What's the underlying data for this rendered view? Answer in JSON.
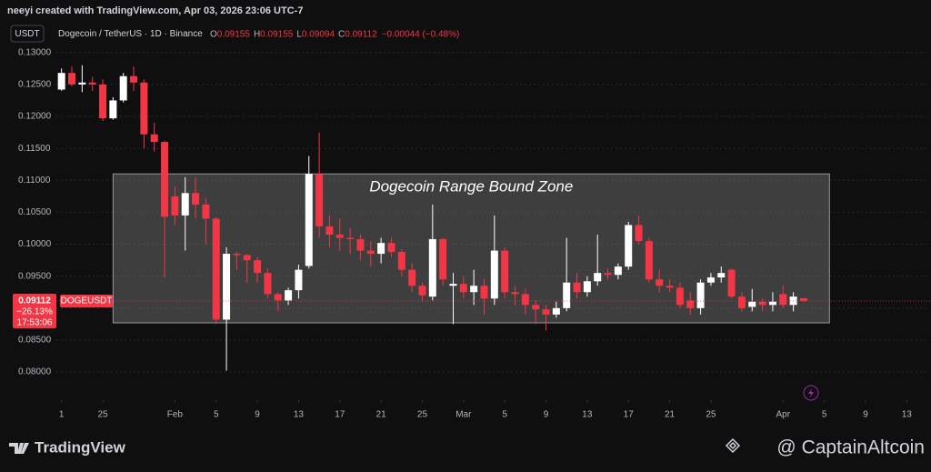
{
  "header": {
    "attribution": "neeyi created with TradingView.com, Apr 03, 2026 23:06 UTC-7",
    "currency_button": "USDT",
    "symbol": "Dogecoin / TetherUS · 1D · Binance",
    "ohlc": [
      {
        "key": "O",
        "value": "0.09155"
      },
      {
        "key": "H",
        "value": "0.09155"
      },
      {
        "key": "L",
        "value": "0.09094"
      },
      {
        "key": "C",
        "value": "0.09112"
      }
    ],
    "change": "−0.00044 (−0.48%)"
  },
  "chart_data": {
    "type": "candlestick",
    "grid": true,
    "xlim": [
      20.5,
      105
    ],
    "ylim": [
      0.0756,
      0.1311
    ],
    "xticks": [
      {
        "value": 21,
        "label": "1"
      },
      25,
      {
        "value": 32,
        "label": "Feb"
      },
      {
        "value": 36,
        "label": "5"
      },
      {
        "value": 40,
        "label": "9"
      },
      {
        "value": 44,
        "label": "13"
      },
      {
        "value": 48,
        "label": "17"
      },
      {
        "value": 52,
        "label": "21"
      },
      {
        "value": 56,
        "label": "25"
      },
      {
        "value": 60,
        "label": "Mar"
      },
      {
        "value": 64,
        "label": "5"
      },
      {
        "value": 68,
        "label": "9"
      },
      {
        "value": 72,
        "label": "13"
      },
      {
        "value": 76,
        "label": "17"
      },
      {
        "value": 80,
        "label": "21"
      },
      {
        "value": 84,
        "label": "25"
      },
      {
        "value": 91,
        "label": "Apr"
      },
      {
        "value": 95,
        "label": "5"
      },
      {
        "value": 99,
        "label": "9"
      },
      {
        "value": 103,
        "label": "13"
      }
    ],
    "yticks": [
      {
        "value": 0.13,
        "label": "0.13000"
      },
      {
        "value": 0.125,
        "label": "0.12500"
      },
      {
        "value": 0.12,
        "label": "0.12000"
      },
      {
        "value": 0.115,
        "label": "0.11500"
      },
      {
        "value": 0.11,
        "label": "0.11000"
      },
      {
        "value": 0.105,
        "label": "0.10500"
      },
      {
        "value": 0.1,
        "label": "0.10000"
      },
      {
        "value": 0.095,
        "label": "0.09500"
      },
      {
        "value": 0.09,
        "label": "0.09000"
      },
      {
        "value": 0.085,
        "label": "0.08500"
      },
      {
        "value": 0.08,
        "label": "0.08000"
      }
    ],
    "series": [
      {
        "name": "DOGEUSDT",
        "up_color": "#ffffff",
        "down_color": "#f23645",
        "x": [
          21,
          22,
          23,
          24,
          25,
          26,
          27,
          28,
          29,
          30,
          31,
          32,
          33,
          34,
          35,
          36,
          37,
          38,
          39,
          40,
          41,
          42,
          43,
          44,
          45,
          46,
          47,
          48,
          49,
          50,
          51,
          52,
          53,
          54,
          55,
          56,
          57,
          58,
          59,
          60,
          61,
          62,
          63,
          64,
          65,
          66,
          67,
          68,
          69,
          70,
          71,
          72,
          73,
          74,
          75,
          76,
          77,
          78,
          79,
          80,
          81,
          82,
          83,
          84,
          85,
          86,
          87,
          88,
          89,
          90,
          91,
          92,
          93
        ],
        "open": [
          0.1242,
          0.1268,
          0.125,
          0.1253,
          0.125,
          0.1197,
          0.1225,
          0.1263,
          0.1253,
          0.1172,
          0.116,
          0.1075,
          0.1045,
          0.108,
          0.1062,
          0.104,
          0.0882,
          0.0985,
          0.0983,
          0.0975,
          0.0955,
          0.0922,
          0.0912,
          0.0928,
          0.0966,
          0.111,
          0.1028,
          0.1015,
          0.101,
          0.1008,
          0.099,
          0.0985,
          0.1002,
          0.0988,
          0.096,
          0.0935,
          0.0918,
          0.1008,
          0.0935,
          0.0938,
          0.0925,
          0.0935,
          0.0915,
          0.099,
          0.0925,
          0.0922,
          0.0905,
          0.0898,
          0.089,
          0.09,
          0.094,
          0.0925,
          0.0942,
          0.0955,
          0.0952,
          0.0965,
          0.103,
          0.1005,
          0.0945,
          0.0935,
          0.0932,
          0.0912,
          0.09,
          0.094,
          0.0948,
          0.096,
          0.0918,
          0.0902,
          0.091,
          0.0905,
          0.0922,
          0.0905,
          0.09155
        ],
        "high": [
          0.1275,
          0.1278,
          0.128,
          0.1262,
          0.1258,
          0.123,
          0.1268,
          0.1278,
          0.1258,
          0.119,
          0.1162,
          0.109,
          0.1105,
          0.1105,
          0.1072,
          0.1042,
          0.0995,
          0.0988,
          0.0985,
          0.098,
          0.0962,
          0.0925,
          0.0932,
          0.0968,
          0.1138,
          0.1175,
          0.1045,
          0.104,
          0.1025,
          0.1015,
          0.1005,
          0.101,
          0.101,
          0.0992,
          0.097,
          0.094,
          0.1062,
          0.101,
          0.0955,
          0.095,
          0.096,
          0.0945,
          0.1045,
          0.0995,
          0.0935,
          0.093,
          0.0912,
          0.0905,
          0.091,
          0.101,
          0.0955,
          0.095,
          0.1015,
          0.0962,
          0.097,
          0.1035,
          0.1045,
          0.101,
          0.096,
          0.0945,
          0.094,
          0.0925,
          0.0945,
          0.0955,
          0.0965,
          0.0962,
          0.0925,
          0.093,
          0.0915,
          0.0925,
          0.0935,
          0.0925,
          0.09155
        ],
        "low": [
          0.124,
          0.1247,
          0.1238,
          0.124,
          0.1193,
          0.1195,
          0.1222,
          0.124,
          0.115,
          0.1145,
          0.0948,
          0.103,
          0.099,
          0.104,
          0.1,
          0.0875,
          0.0802,
          0.096,
          0.094,
          0.094,
          0.0915,
          0.0895,
          0.0905,
          0.0915,
          0.0962,
          0.101,
          0.0995,
          0.099,
          0.0985,
          0.0975,
          0.0965,
          0.097,
          0.098,
          0.095,
          0.0925,
          0.091,
          0.0912,
          0.0935,
          0.0875,
          0.0915,
          0.0905,
          0.089,
          0.0905,
          0.0915,
          0.0905,
          0.089,
          0.0875,
          0.0865,
          0.0885,
          0.0895,
          0.0915,
          0.0918,
          0.0935,
          0.0945,
          0.0945,
          0.096,
          0.1,
          0.094,
          0.0925,
          0.0925,
          0.09,
          0.089,
          0.089,
          0.0935,
          0.094,
          0.0915,
          0.0895,
          0.0895,
          0.0895,
          0.0895,
          0.09,
          0.0895,
          0.09094
        ],
        "close": [
          0.1268,
          0.125,
          0.1253,
          0.125,
          0.1197,
          0.1225,
          0.1263,
          0.1253,
          0.1172,
          0.116,
          0.1043,
          0.1045,
          0.108,
          0.1062,
          0.104,
          0.0882,
          0.0985,
          0.0983,
          0.0975,
          0.0955,
          0.0922,
          0.0912,
          0.0928,
          0.096,
          0.111,
          0.1028,
          0.1015,
          0.101,
          0.1008,
          0.099,
          0.0985,
          0.1002,
          0.0988,
          0.096,
          0.0935,
          0.092,
          0.1008,
          0.0945,
          0.0938,
          0.0925,
          0.0935,
          0.0915,
          0.099,
          0.0925,
          0.0922,
          0.0905,
          0.0898,
          0.089,
          0.09,
          0.094,
          0.0925,
          0.0942,
          0.0955,
          0.0952,
          0.0965,
          0.103,
          0.1005,
          0.0945,
          0.0935,
          0.0932,
          0.0905,
          0.09,
          0.094,
          0.0948,
          0.0955,
          0.0918,
          0.09,
          0.091,
          0.0905,
          0.091,
          0.0905,
          0.0918,
          0.09112
        ]
      }
    ],
    "zone": {
      "label": "Dogecoin Range Bound Zone",
      "x": [
        26,
        95.5
      ],
      "y": [
        0.0877,
        0.111
      ]
    },
    "last_price": {
      "value": 0.09112,
      "change": "−26.13%",
      "countdown": "17:53:06",
      "symbol": "DOGEUSDT"
    }
  },
  "footer": {
    "logo": "TradingView",
    "watermark": "@ CaptainAltcoin"
  }
}
